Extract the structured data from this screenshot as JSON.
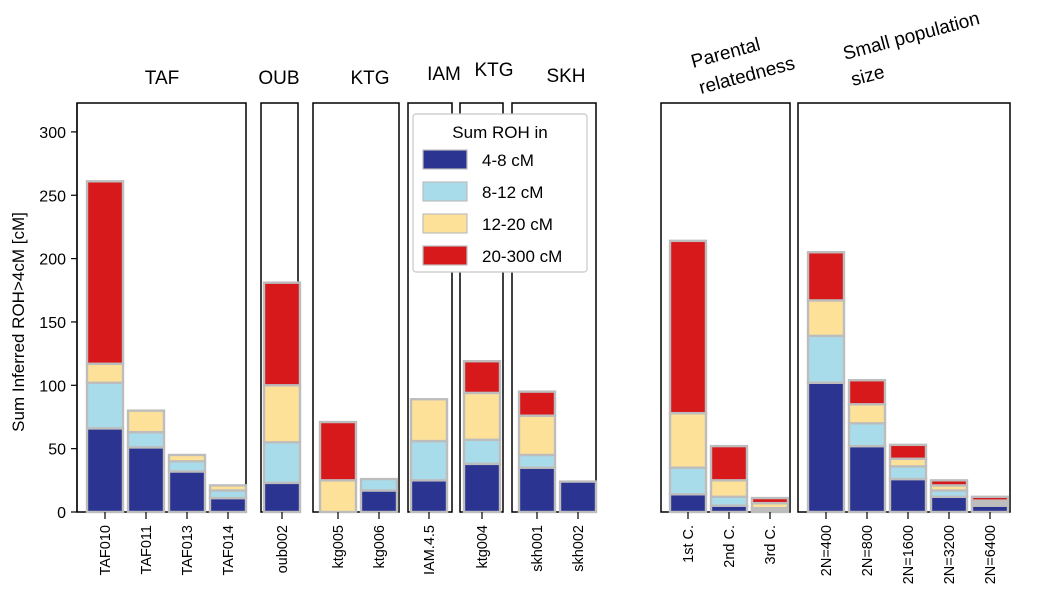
{
  "chart_data": {
    "type": "bar",
    "stacked": true,
    "ylabel": "Sum Inferred ROH>4cM [cM]",
    "ylim": [
      0,
      325
    ],
    "yticks": [
      0,
      50,
      100,
      150,
      200,
      250,
      300
    ],
    "legend": {
      "title": "Sum ROH in",
      "placement": "top-center",
      "entries": [
        "4-8 cM",
        "8-12 cM",
        "12-20 cM",
        "20-300 cM"
      ]
    },
    "colors": {
      "4-8 cM": "#2b3490",
      "8-12 cM": "#a9dcea",
      "12-20 cM": "#fde199",
      "20-300 cM": "#d7191c",
      "bar_edge": "#bdbdbd"
    },
    "groups": [
      {
        "label": "TAF",
        "bars": [
          {
            "name": "TAF010",
            "values": [
              66,
              36,
              15,
              144
            ]
          },
          {
            "name": "TAF011",
            "values": [
              51,
              12,
              17,
              0
            ]
          },
          {
            "name": "TAF013",
            "values": [
              32,
              8,
              5,
              0
            ]
          },
          {
            "name": "TAF014",
            "values": [
              11,
              6,
              4,
              0
            ]
          }
        ]
      },
      {
        "label": "OUB",
        "bars": [
          {
            "name": "oub002",
            "values": [
              23,
              32,
              45,
              81
            ]
          }
        ]
      },
      {
        "label": "KTG",
        "bars": [
          {
            "name": "ktg005",
            "values": [
              0,
              0,
              25,
              46
            ]
          },
          {
            "name": "ktg006",
            "values": [
              17,
              9,
              0,
              0
            ]
          }
        ]
      },
      {
        "label": "IAM",
        "bars": [
          {
            "name": "IAM.4.5",
            "values": [
              25,
              31,
              33,
              0
            ]
          }
        ]
      },
      {
        "label": "KTG",
        "bars": [
          {
            "name": "ktg004",
            "values": [
              38,
              19,
              37,
              25
            ]
          }
        ]
      },
      {
        "label": "SKH",
        "bars": [
          {
            "name": "skh001",
            "values": [
              35,
              10,
              31,
              19
            ]
          },
          {
            "name": "skh002",
            "values": [
              24,
              0,
              0,
              0
            ]
          }
        ]
      },
      {
        "label": "Parental relatedness",
        "bars": [
          {
            "name": "1st C.",
            "values": [
              14,
              21,
              43,
              136
            ]
          },
          {
            "name": "2nd C.",
            "values": [
              5,
              7,
              13,
              27
            ]
          },
          {
            "name": "3rd C.",
            "values": [
              1,
              2,
              4,
              4
            ]
          }
        ]
      },
      {
        "label": "Small population size",
        "bars": [
          {
            "name": "2N=400",
            "values": [
              102,
              37,
              28,
              38
            ]
          },
          {
            "name": "2N=800",
            "values": [
              52,
              18,
              15,
              19
            ]
          },
          {
            "name": "2N=1600",
            "values": [
              26,
              10,
              6,
              11
            ]
          },
          {
            "name": "2N=3200",
            "values": [
              12,
              5,
              4,
              4
            ]
          },
          {
            "name": "2N=6400",
            "values": [
              5,
              2,
              2,
              3
            ]
          }
        ]
      }
    ]
  }
}
